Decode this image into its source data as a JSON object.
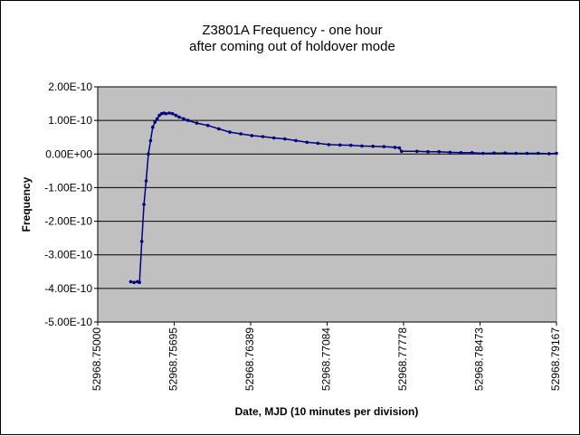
{
  "chart_data": {
    "type": "scatter",
    "title": "Z3801A Frequency - one hour",
    "subtitle": "after coming out of holdover mode",
    "xlabel": "Date, MJD (10 minutes per division)",
    "ylabel": "Frequency",
    "xlim": [
      52968.75,
      52968.79167
    ],
    "ylim": [
      -5e-10,
      2e-10
    ],
    "x_tick_values": [
      52968.75,
      52968.75695,
      52968.76389,
      52968.77084,
      52968.77778,
      52968.78473,
      52968.79167
    ],
    "x_tick_labels": [
      "52968.75000",
      "52968.75695",
      "52968.76389",
      "52968.77084",
      "52968.77778",
      "52968.78473",
      "52968.79167"
    ],
    "y_tick_values": [
      2e-10,
      1e-10,
      0.0,
      -1e-10,
      -2e-10,
      -3e-10,
      -4e-10,
      -5e-10
    ],
    "y_tick_labels": [
      "2.00E-10",
      "1.00E-10",
      "0.00E+00",
      "-1.00E-10",
      "-2.00E-10",
      "-3.00E-10",
      "-4.00E-10",
      "-5.00E-10"
    ],
    "grid": "horizontal",
    "legend": "none",
    "plot_background": "#c0c0c0",
    "series_color": "#000080",
    "series": [
      {
        "x": [
          52968.753,
          52968.7533,
          52968.7536,
          52968.7538,
          52968.754,
          52968.7542,
          52968.7544,
          52968.7546,
          52968.7548,
          52968.755,
          52968.7552,
          52968.7554,
          52968.7556,
          52968.7558,
          52968.756,
          52968.7562,
          52968.7565,
          52968.7568,
          52968.7571,
          52968.7574,
          52968.7578,
          52968.7582,
          52968.759,
          52968.76,
          52968.761,
          52968.762,
          52968.763,
          52968.764,
          52968.765,
          52968.766,
          52968.767,
          52968.768,
          52968.769,
          52968.77,
          52968.771,
          52968.772,
          52968.773,
          52968.774,
          52968.775,
          52968.776,
          52968.777,
          52968.7774,
          52968.7776,
          52968.779,
          52968.78,
          52968.781,
          52968.782,
          52968.783,
          52968.784,
          52968.785,
          52968.786,
          52968.787,
          52968.788,
          52968.789,
          52968.79,
          52968.791,
          52968.79167
        ],
        "values": [
          -3.8e-10,
          -3.82e-10,
          -3.8e-10,
          -3.82e-10,
          -2.6e-10,
          -1.5e-10,
          -8e-11,
          0.0,
          4e-11,
          8e-11,
          9.5e-11,
          1.05e-10,
          1.15e-10,
          1.2e-10,
          1.22e-10,
          1.2e-10,
          1.22e-10,
          1.2e-10,
          1.15e-10,
          1.1e-10,
          1.05e-10,
          1e-10,
          9.2e-11,
          8.5e-11,
          7.5e-11,
          6.5e-11,
          6e-11,
          5.5e-11,
          5.2e-11,
          4.8e-11,
          4.5e-11,
          4e-11,
          3.5e-11,
          3.2e-11,
          2.8e-11,
          2.7e-11,
          2.6e-11,
          2.4e-11,
          2.3e-11,
          2.2e-11,
          2e-11,
          1.8e-11,
          8e-12,
          8e-12,
          7e-12,
          7e-12,
          5e-12,
          4e-12,
          4e-12,
          2e-12,
          3e-12,
          3e-12,
          2e-12,
          2e-12,
          2e-12,
          1e-12,
          2e-12
        ]
      }
    ]
  }
}
